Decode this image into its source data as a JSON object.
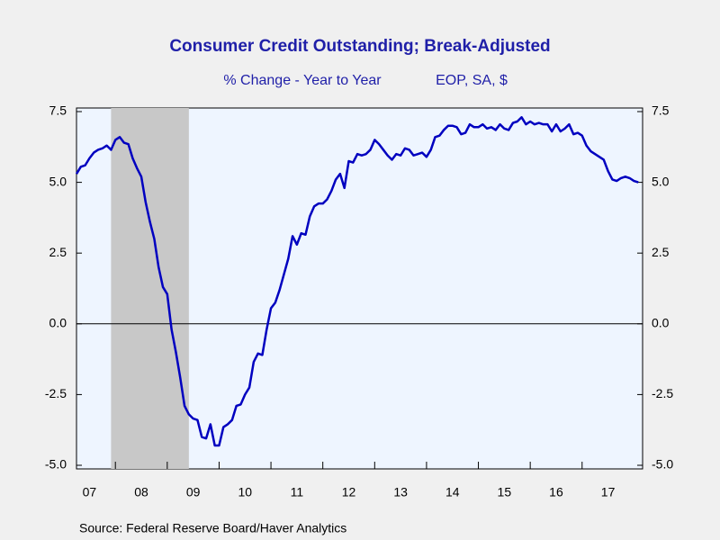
{
  "chart_data": {
    "type": "line",
    "title": "Consumer Credit Outstanding; Break-Adjusted",
    "subtitle": "% Change - Year to Year",
    "units_note": "EOP, SA, $",
    "source": "Source:  Federal Reserve Board/Haver Analytics",
    "x": [
      "2007-04",
      "2007-05",
      "2007-06",
      "2007-07",
      "2007-08",
      "2007-09",
      "2007-10",
      "2007-11",
      "2007-12",
      "2008-01",
      "2008-02",
      "2008-03",
      "2008-04",
      "2008-05",
      "2008-06",
      "2008-07",
      "2008-08",
      "2008-09",
      "2008-10",
      "2008-11",
      "2008-12",
      "2009-01",
      "2009-02",
      "2009-03",
      "2009-04",
      "2009-05",
      "2009-06",
      "2009-07",
      "2009-08",
      "2009-09",
      "2009-10",
      "2009-11",
      "2009-12",
      "2010-01",
      "2010-02",
      "2010-03",
      "2010-04",
      "2010-05",
      "2010-06",
      "2010-07",
      "2010-08",
      "2010-09",
      "2010-10",
      "2010-11",
      "2010-12",
      "2011-01",
      "2011-02",
      "2011-03",
      "2011-04",
      "2011-05",
      "2011-06",
      "2011-07",
      "2011-08",
      "2011-09",
      "2011-10",
      "2011-11",
      "2011-12",
      "2012-01",
      "2012-02",
      "2012-03",
      "2012-04",
      "2012-05",
      "2012-06",
      "2012-07",
      "2012-08",
      "2012-09",
      "2012-10",
      "2012-11",
      "2012-12",
      "2013-01",
      "2013-02",
      "2013-03",
      "2013-04",
      "2013-05",
      "2013-06",
      "2013-07",
      "2013-08",
      "2013-09",
      "2013-10",
      "2013-11",
      "2013-12",
      "2014-01",
      "2014-02",
      "2014-03",
      "2014-04",
      "2014-05",
      "2014-06",
      "2014-07",
      "2014-08",
      "2014-09",
      "2014-10",
      "2014-11",
      "2014-12",
      "2015-01",
      "2015-02",
      "2015-03",
      "2015-04",
      "2015-05",
      "2015-06",
      "2015-07",
      "2015-08",
      "2015-09",
      "2015-10",
      "2015-11",
      "2015-12",
      "2016-01",
      "2016-02",
      "2016-03",
      "2016-04",
      "2016-05",
      "2016-06",
      "2016-07",
      "2016-08",
      "2016-09",
      "2016-10",
      "2016-11",
      "2016-12",
      "2017-01",
      "2017-02",
      "2017-03",
      "2017-04",
      "2017-05",
      "2017-06",
      "2017-07",
      "2017-08",
      "2017-09",
      "2017-10",
      "2017-11",
      "2017-12",
      "2018-01",
      "2018-02"
    ],
    "series": [
      {
        "name": "Consumer Credit Outstanding; Break-Adjusted",
        "color": "#0000c0",
        "values": [
          5.3,
          5.55,
          5.6,
          5.85,
          6.05,
          6.15,
          6.2,
          6.3,
          6.15,
          6.5,
          6.6,
          6.4,
          6.35,
          5.85,
          5.5,
          5.2,
          4.3,
          3.6,
          3.0,
          2.0,
          1.3,
          1.05,
          -0.2,
          -1.0,
          -1.9,
          -2.9,
          -3.2,
          -3.35,
          -3.4,
          -4.0,
          -4.05,
          -3.55,
          -4.3,
          -4.3,
          -3.65,
          -3.55,
          -3.4,
          -2.9,
          -2.85,
          -2.5,
          -2.25,
          -1.35,
          -1.05,
          -1.1,
          -0.2,
          0.55,
          0.75,
          1.2,
          1.75,
          2.3,
          3.1,
          2.8,
          3.2,
          3.15,
          3.8,
          4.15,
          4.25,
          4.25,
          4.4,
          4.7,
          5.1,
          5.3,
          4.8,
          5.75,
          5.7,
          6.0,
          5.95,
          6.0,
          6.15,
          6.5,
          6.35,
          6.15,
          5.95,
          5.8,
          6.0,
          5.95,
          6.2,
          6.15,
          5.95,
          6.0,
          6.05,
          5.9,
          6.15,
          6.6,
          6.65,
          6.85,
          7.0,
          7.0,
          6.95,
          6.7,
          6.75,
          7.05,
          6.95,
          6.95,
          7.05,
          6.9,
          6.95,
          6.85,
          7.05,
          6.9,
          6.85,
          7.1,
          7.15,
          7.3,
          7.05,
          7.15,
          7.05,
          7.1,
          7.05,
          7.05,
          6.8,
          7.05,
          6.8,
          6.9,
          7.05,
          6.7,
          6.75,
          6.65,
          6.3,
          6.1,
          6.0,
          5.9,
          5.8,
          5.4,
          5.1,
          5.05,
          5.15,
          5.2,
          5.15,
          5.05,
          5.0
        ]
      }
    ],
    "xlim": [
      "2007-04",
      "2018-03"
    ],
    "xticks": [
      {
        "value": 2007,
        "label": "07"
      },
      {
        "value": 2008,
        "label": "08"
      },
      {
        "value": 2009,
        "label": "09"
      },
      {
        "value": 2010,
        "label": "10"
      },
      {
        "value": 2011,
        "label": "11"
      },
      {
        "value": 2012,
        "label": "12"
      },
      {
        "value": 2013,
        "label": "13"
      },
      {
        "value": 2014,
        "label": "14"
      },
      {
        "value": 2015,
        "label": "15"
      },
      {
        "value": 2016,
        "label": "16"
      },
      {
        "value": 2017,
        "label": "17"
      }
    ],
    "ylim": [
      -5,
      7.5
    ],
    "yticks": [
      7.5,
      {
        "value": 5,
        "label": "5.0"
      },
      2.5,
      {
        "value": 0,
        "label": "0.0"
      },
      -2.5,
      {
        "value": -5,
        "label": "-5.0"
      }
    ],
    "y2lim": [
      -5,
      7.5
    ],
    "y2ticks": [
      7.5,
      {
        "value": 5,
        "label": "5.0"
      },
      2.5,
      {
        "value": 0,
        "label": "0.0"
      },
      -2.5,
      {
        "value": -5,
        "label": "-5.0"
      }
    ],
    "recession_shading": [
      [
        "2007-12",
        "2009-06"
      ]
    ],
    "zero_line": true
  }
}
